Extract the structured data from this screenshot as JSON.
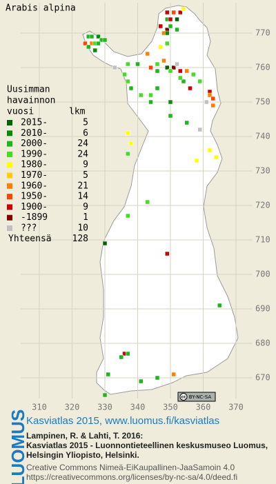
{
  "title": "Arabis alpina",
  "legend": {
    "heading": [
      "Uusimman",
      "havainnon",
      "vuosi"
    ],
    "count_heading": "lkm",
    "items": [
      {
        "label": "2015-",
        "count": 5,
        "color": "#006400"
      },
      {
        "label": "2010-",
        "count": 6,
        "color": "#0a8a0a"
      },
      {
        "label": "2000-",
        "count": 24,
        "color": "#1fb51f"
      },
      {
        "label": "1990-",
        "count": 24,
        "color": "#44dd22"
      },
      {
        "label": "1980-",
        "count": 9,
        "color": "#ffff00"
      },
      {
        "label": "1970-",
        "count": 5,
        "color": "#ffcc00"
      },
      {
        "label": "1960-",
        "count": 21,
        "color": "#ff8000"
      },
      {
        "label": "1950-",
        "count": 14,
        "color": "#ff4400"
      },
      {
        "label": "1900-",
        "count": 9,
        "color": "#cc0000"
      },
      {
        "label": "-1899",
        "count": 1,
        "color": "#800000"
      },
      {
        "label": "???",
        "count": 10,
        "color": "#c0c0c0"
      }
    ],
    "total_label": "Yhteensä",
    "total": 128
  },
  "grid": {
    "xticks": [
      310,
      320,
      330,
      340,
      350,
      360,
      370
    ],
    "yticks": [
      770,
      760,
      750,
      740,
      730,
      720,
      710,
      700,
      690,
      680,
      670
    ]
  },
  "points": [
    {
      "x": 349,
      "y": 776,
      "class": 8
    },
    {
      "x": 351,
      "y": 776,
      "class": 7
    },
    {
      "x": 353,
      "y": 776,
      "class": 8
    },
    {
      "x": 354,
      "y": 777,
      "class": 4
    },
    {
      "x": 349,
      "y": 774,
      "class": 2
    },
    {
      "x": 350,
      "y": 774,
      "class": 8
    },
    {
      "x": 352,
      "y": 774,
      "class": 0
    },
    {
      "x": 347,
      "y": 772,
      "class": 8
    },
    {
      "x": 349,
      "y": 771,
      "class": 9
    },
    {
      "x": 350,
      "y": 772,
      "class": 2
    },
    {
      "x": 352,
      "y": 771,
      "class": 2
    },
    {
      "x": 348,
      "y": 770,
      "class": 6
    },
    {
      "x": 349,
      "y": 770,
      "class": 1
    },
    {
      "x": 325,
      "y": 769,
      "class": 2
    },
    {
      "x": 326,
      "y": 769,
      "class": 2
    },
    {
      "x": 328,
      "y": 769,
      "class": 1
    },
    {
      "x": 329,
      "y": 768,
      "class": 2
    },
    {
      "x": 324,
      "y": 767,
      "class": 7
    },
    {
      "x": 326,
      "y": 767,
      "class": 6
    },
    {
      "x": 327,
      "y": 767,
      "class": 3
    },
    {
      "x": 328,
      "y": 767,
      "class": 2
    },
    {
      "x": 325,
      "y": 766,
      "class": 2
    },
    {
      "x": 327,
      "y": 765,
      "class": 1
    },
    {
      "x": 330,
      "y": 768,
      "class": 2
    },
    {
      "x": 343,
      "y": 764,
      "class": 6
    },
    {
      "x": 347,
      "y": 766,
      "class": 4
    },
    {
      "x": 349,
      "y": 767,
      "class": 3
    },
    {
      "x": 348,
      "y": 762,
      "class": 6
    },
    {
      "x": 349,
      "y": 760,
      "class": 0
    },
    {
      "x": 351,
      "y": 760,
      "class": 9
    },
    {
      "x": 352,
      "y": 761,
      "class": 10
    },
    {
      "x": 346,
      "y": 761,
      "class": 3
    },
    {
      "x": 344,
      "y": 760,
      "class": 7
    },
    {
      "x": 346,
      "y": 759,
      "class": 2
    },
    {
      "x": 350,
      "y": 759,
      "class": 3
    },
    {
      "x": 353,
      "y": 759,
      "class": 8
    },
    {
      "x": 355,
      "y": 759,
      "class": 6
    },
    {
      "x": 357,
      "y": 758,
      "class": 3
    },
    {
      "x": 354,
      "y": 756,
      "class": 2
    },
    {
      "x": 356,
      "y": 754,
      "class": 8
    },
    {
      "x": 359,
      "y": 756,
      "class": 3
    },
    {
      "x": 362,
      "y": 753,
      "class": 8
    },
    {
      "x": 362,
      "y": 752,
      "class": 6
    },
    {
      "x": 363,
      "y": 751,
      "class": 7
    },
    {
      "x": 361,
      "y": 750,
      "class": 10
    },
    {
      "x": 363,
      "y": 749,
      "class": 6
    },
    {
      "x": 337,
      "y": 761,
      "class": 3
    },
    {
      "x": 340,
      "y": 761,
      "class": 2
    },
    {
      "x": 333,
      "y": 760,
      "class": 10
    },
    {
      "x": 336,
      "y": 758,
      "class": 3
    },
    {
      "x": 337,
      "y": 756,
      "class": 3
    },
    {
      "x": 338,
      "y": 754,
      "class": 2
    },
    {
      "x": 341,
      "y": 752,
      "class": 3
    },
    {
      "x": 344,
      "y": 752,
      "class": 3
    },
    {
      "x": 344,
      "y": 750,
      "class": 2
    },
    {
      "x": 346,
      "y": 754,
      "class": 2
    },
    {
      "x": 353,
      "y": 757,
      "class": 3
    },
    {
      "x": 350,
      "y": 750,
      "class": 1
    },
    {
      "x": 350,
      "y": 746,
      "class": 2
    },
    {
      "x": 355,
      "y": 744,
      "class": 2
    },
    {
      "x": 359,
      "y": 742,
      "class": 10
    },
    {
      "x": 362,
      "y": 736,
      "class": 4
    },
    {
      "x": 364,
      "y": 734,
      "class": 4
    },
    {
      "x": 358,
      "y": 733,
      "class": 4
    },
    {
      "x": 337,
      "y": 741,
      "class": 4
    },
    {
      "x": 338,
      "y": 738,
      "class": 4
    },
    {
      "x": 337,
      "y": 735,
      "class": 3
    },
    {
      "x": 343,
      "y": 721,
      "class": 3
    },
    {
      "x": 337,
      "y": 717,
      "class": 3
    },
    {
      "x": 349,
      "y": 706,
      "class": 8
    },
    {
      "x": 330,
      "y": 709,
      "class": 0
    },
    {
      "x": 365,
      "y": 691,
      "class": 2
    },
    {
      "x": 336,
      "y": 677,
      "class": 8
    },
    {
      "x": 335,
      "y": 676,
      "class": 2
    },
    {
      "x": 337,
      "y": 677,
      "class": 2
    },
    {
      "x": 331,
      "y": 671,
      "class": 2
    },
    {
      "x": 341,
      "y": 669,
      "class": 2
    },
    {
      "x": 346,
      "y": 670,
      "class": 2
    },
    {
      "x": 351,
      "y": 671,
      "class": 6
    },
    {
      "x": 330,
      "y": 665,
      "class": 2
    }
  ],
  "cc_badge": {
    "logo": "cc",
    "license": "BY-NC-SA"
  },
  "footer": {
    "brand": "LUOMUS",
    "site": "Kasviatlas 2015, www.luomus.fi/kasviatlas",
    "citation": [
      "Lampinen, R. & Lahti, T. 2016:",
      "Kasviatlas 2015 - Luonnontieteellinen keskusmuseo Luomus,",
      "Helsingin Yliopisto, Helsinki."
    ],
    "license": [
      "Creative Commons Nimeä-EiKaupallinen-JaaSamoin 4.0",
      "https://creativecommons.org/licenses/by-nc-sa/4.0/deed.fi"
    ]
  }
}
